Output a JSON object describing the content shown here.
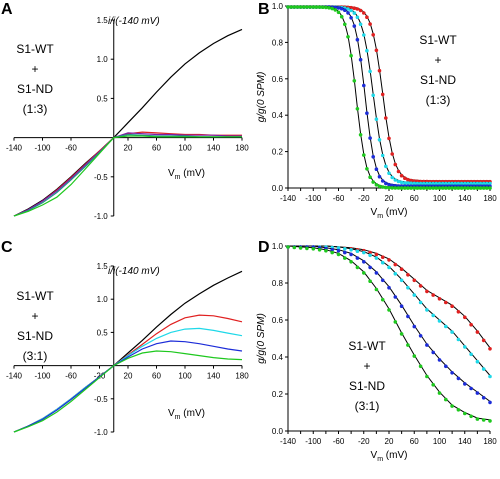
{
  "colors": {
    "black": "#000000",
    "red": "#e02020",
    "cyan": "#1ed8e8",
    "blue": "#1c2cd8",
    "green": "#1ec81e",
    "purple": "#7a20a8",
    "teal": "#20908c"
  },
  "chart_data": [
    {
      "panel": "A",
      "type": "line",
      "ylabel": "i/i(-140 mV)",
      "xlabel": "V",
      "xlabel_sub": "m",
      "xlabel_unit": " (mV)",
      "annotation": [
        "S1-WT",
        "+",
        "S1-ND",
        "(1:3)"
      ],
      "xlim": [
        -140,
        180
      ],
      "ylim": [
        -1.0,
        1.5
      ],
      "xticks": [
        -140,
        -100,
        -60,
        20,
        60,
        100,
        140,
        180
      ],
      "xtick_labels": [
        "-140",
        "-100",
        "-60",
        "20",
        "60",
        "100",
        "140",
        "180"
      ],
      "yticks": [
        -1.0,
        -0.5,
        0.5,
        1.0,
        1.5
      ],
      "ytick_labels": [
        "-1.0",
        "-0.5",
        "0.5",
        "1.0",
        "1.5"
      ],
      "series": [
        {
          "color": "black",
          "x": [
            -140,
            -120,
            -100,
            -80,
            -60,
            -40,
            -20,
            0,
            20,
            40,
            60,
            80,
            100,
            120,
            140,
            160,
            180
          ],
          "y": [
            -1.0,
            -0.91,
            -0.8,
            -0.66,
            -0.5,
            -0.33,
            -0.17,
            0,
            0.19,
            0.38,
            0.58,
            0.77,
            0.94,
            1.08,
            1.2,
            1.3,
            1.38
          ]
        },
        {
          "color": "red",
          "x": [
            -140,
            -120,
            -100,
            -80,
            -60,
            -40,
            -20,
            0,
            20,
            40,
            60,
            80,
            100,
            120,
            140,
            160,
            180
          ],
          "y": [
            -1.0,
            -0.92,
            -0.81,
            -0.67,
            -0.51,
            -0.34,
            -0.17,
            0,
            0.05,
            0.07,
            0.06,
            0.05,
            0.04,
            0.04,
            0.03,
            0.03,
            0.03
          ]
        },
        {
          "color": "purple",
          "x": [
            -140,
            -120,
            -100,
            -80,
            -60,
            -40,
            -20,
            0,
            20,
            40,
            60,
            80,
            100,
            120,
            140,
            160,
            180
          ],
          "y": [
            -1.0,
            -0.92,
            -0.81,
            -0.68,
            -0.52,
            -0.35,
            -0.18,
            0,
            0.06,
            0.05,
            0.04,
            0.04,
            0.03,
            0.03,
            0.03,
            0.02,
            0.02
          ]
        },
        {
          "color": "teal",
          "x": [
            -140,
            -120,
            -100,
            -80,
            -60,
            -40,
            -20,
            0,
            20,
            40,
            60,
            80,
            100,
            120,
            140,
            160,
            180
          ],
          "y": [
            -1.0,
            -0.93,
            -0.83,
            -0.7,
            -0.54,
            -0.37,
            -0.19,
            0,
            0.04,
            0.03,
            0.02,
            0.02,
            0.02,
            0.01,
            0.01,
            0.01,
            0.01
          ]
        },
        {
          "color": "green",
          "x": [
            -140,
            -120,
            -100,
            -80,
            -60,
            -40,
            -20,
            0,
            20,
            40,
            60,
            80,
            100,
            120,
            140,
            160,
            180
          ],
          "y": [
            -1.0,
            -0.94,
            -0.86,
            -0.76,
            -0.6,
            -0.4,
            -0.2,
            0,
            0.02,
            0.02,
            0.01,
            0.01,
            0.01,
            0.01,
            0.01,
            0.01,
            0.01
          ]
        }
      ]
    },
    {
      "panel": "B",
      "type": "line",
      "ylabel": "g/g(0 SPM)",
      "xlabel": "V",
      "xlabel_sub": "m",
      "xlabel_unit": " (mV)",
      "annotation": [
        "S1-WT",
        "+",
        "S1-ND",
        "(1:3)"
      ],
      "xlim": [
        -140,
        180
      ],
      "ylim": [
        0,
        1.0
      ],
      "xticks": [
        -140,
        -120,
        -100,
        -80,
        -60,
        -40,
        -20,
        0,
        20,
        40,
        60,
        80,
        100,
        120,
        140,
        160,
        180
      ],
      "xtick_labels": [
        "-140",
        "-100",
        "-60",
        "-20",
        "20",
        "60",
        "100",
        "140",
        "180"
      ],
      "xtick_label_values": [
        -140,
        -100,
        -60,
        -20,
        20,
        60,
        100,
        140,
        180
      ],
      "yticks": [
        0.0,
        0.2,
        0.4,
        0.6,
        0.8,
        1.0
      ],
      "ytick_labels": [
        "0.0",
        "0.2",
        "0.4",
        "0.6",
        "0.8",
        "1.0"
      ],
      "series": [
        {
          "color": "red",
          "v50": 10,
          "k": 9,
          "base": 0.04
        },
        {
          "color": "cyan",
          "v50": -5,
          "k": 9,
          "base": 0.03
        },
        {
          "color": "blue",
          "v50": -18,
          "k": 8,
          "base": 0.015
        },
        {
          "color": "green",
          "v50": -32,
          "k": 8,
          "base": 0.005
        }
      ]
    },
    {
      "panel": "C",
      "type": "line",
      "ylabel": "i/i(-140 mV)",
      "xlabel": "V",
      "xlabel_sub": "m",
      "xlabel_unit": " (mV)",
      "annotation": [
        "S1-WT",
        "+",
        "S1-ND",
        "(3:1)"
      ],
      "xlim": [
        -140,
        180
      ],
      "ylim": [
        -1.0,
        1.5
      ],
      "xticks": [
        -140,
        -100,
        -60,
        -20,
        20,
        60,
        100,
        140,
        180
      ],
      "xtick_labels": [
        "-140",
        "-100",
        "-60",
        "-20",
        "20",
        "60",
        "100",
        "140",
        "180"
      ],
      "yticks": [
        -1.0,
        -0.5,
        0.5,
        1.0,
        1.5
      ],
      "ytick_labels": [
        "-1.0",
        "-0.5",
        "0.5",
        "1.0",
        "1.5"
      ],
      "series": [
        {
          "color": "black",
          "x": [
            -140,
            -120,
            -100,
            -80,
            -60,
            -40,
            -20,
            0,
            20,
            40,
            60,
            80,
            100,
            120,
            140,
            160,
            180
          ],
          "y": [
            -1.0,
            -0.91,
            -0.8,
            -0.66,
            -0.5,
            -0.33,
            -0.17,
            0,
            0.19,
            0.38,
            0.58,
            0.77,
            0.94,
            1.08,
            1.21,
            1.32,
            1.42
          ]
        },
        {
          "color": "red",
          "x": [
            -140,
            -120,
            -100,
            -80,
            -60,
            -40,
            -20,
            0,
            20,
            40,
            60,
            80,
            100,
            120,
            140,
            160,
            180
          ],
          "y": [
            -1.0,
            -0.91,
            -0.8,
            -0.66,
            -0.5,
            -0.33,
            -0.17,
            0,
            0.16,
            0.32,
            0.48,
            0.62,
            0.72,
            0.76,
            0.75,
            0.71,
            0.66
          ]
        },
        {
          "color": "cyan",
          "x": [
            -140,
            -120,
            -100,
            -80,
            -60,
            -40,
            -20,
            0,
            20,
            40,
            60,
            80,
            100,
            120,
            140,
            160,
            180
          ],
          "y": [
            -1.0,
            -0.91,
            -0.8,
            -0.66,
            -0.5,
            -0.33,
            -0.17,
            0,
            0.15,
            0.29,
            0.41,
            0.5,
            0.55,
            0.56,
            0.53,
            0.49,
            0.45
          ]
        },
        {
          "color": "blue",
          "x": [
            -140,
            -120,
            -100,
            -80,
            -60,
            -40,
            -20,
            0,
            20,
            40,
            60,
            80,
            100,
            120,
            140,
            160,
            180
          ],
          "y": [
            -1.0,
            -0.91,
            -0.81,
            -0.67,
            -0.51,
            -0.34,
            -0.17,
            0,
            0.13,
            0.25,
            0.33,
            0.37,
            0.36,
            0.33,
            0.29,
            0.25,
            0.22
          ]
        },
        {
          "color": "green",
          "x": [
            -140,
            -120,
            -100,
            -80,
            -60,
            -40,
            -20,
            0,
            20,
            40,
            60,
            80,
            100,
            120,
            140,
            160,
            180
          ],
          "y": [
            -1.0,
            -0.92,
            -0.83,
            -0.7,
            -0.54,
            -0.36,
            -0.18,
            0,
            0.11,
            0.19,
            0.22,
            0.21,
            0.18,
            0.15,
            0.12,
            0.1,
            0.09
          ]
        }
      ]
    },
    {
      "panel": "D",
      "type": "line",
      "ylabel": "g/g(0 SPM)",
      "xlabel": "V",
      "xlabel_sub": "m",
      "xlabel_unit": " (mV)",
      "annotation": [
        "S1-WT",
        "+",
        "S1-ND",
        "(3:1)"
      ],
      "xlim": [
        -140,
        180
      ],
      "ylim": [
        0,
        1.0
      ],
      "xticks": [
        -140,
        -120,
        -100,
        -80,
        -60,
        -40,
        -20,
        0,
        20,
        40,
        60,
        80,
        100,
        120,
        140,
        160,
        180
      ],
      "xtick_labels": [
        "-140",
        "-100",
        "-60",
        "-20",
        "20",
        "60",
        "100",
        "140",
        "180"
      ],
      "xtick_label_values": [
        -140,
        -100,
        -60,
        -20,
        20,
        60,
        100,
        140,
        180
      ],
      "yticks": [
        0.0,
        0.2,
        0.4,
        0.6,
        0.8,
        1.0
      ],
      "ytick_labels": [
        "0.0",
        "0.2",
        "0.4",
        "0.6",
        "0.8",
        "1.0"
      ],
      "series": [
        {
          "color": "red",
          "x": [
            -140,
            -120,
            -100,
            -80,
            -60,
            -40,
            -20,
            0,
            20,
            40,
            60,
            80,
            100,
            120,
            140,
            160,
            180
          ],
          "y": [
            1.0,
            1.0,
            1.0,
            1.0,
            0.995,
            0.99,
            0.98,
            0.96,
            0.93,
            0.88,
            0.82,
            0.76,
            0.72,
            0.68,
            0.62,
            0.54,
            0.45
          ]
        },
        {
          "color": "cyan",
          "x": [
            -140,
            -120,
            -100,
            -80,
            -60,
            -40,
            -20,
            0,
            20,
            40,
            60,
            80,
            100,
            120,
            140,
            160,
            180
          ],
          "y": [
            1.0,
            1.0,
            1.0,
            1.0,
            0.995,
            0.985,
            0.97,
            0.94,
            0.89,
            0.82,
            0.74,
            0.66,
            0.6,
            0.54,
            0.46,
            0.38,
            0.3
          ]
        },
        {
          "color": "blue",
          "x": [
            -140,
            -120,
            -100,
            -80,
            -60,
            -40,
            -20,
            0,
            20,
            40,
            60,
            80,
            100,
            120,
            140,
            160,
            180
          ],
          "y": [
            1.0,
            1.0,
            1.0,
            0.99,
            0.98,
            0.96,
            0.92,
            0.86,
            0.78,
            0.68,
            0.57,
            0.47,
            0.39,
            0.32,
            0.26,
            0.21,
            0.16
          ]
        },
        {
          "color": "green",
          "x": [
            -140,
            -120,
            -100,
            -80,
            -60,
            -40,
            -20,
            0,
            20,
            40,
            60,
            80,
            100,
            120,
            140,
            160,
            180
          ],
          "y": [
            1.0,
            0.995,
            0.99,
            0.98,
            0.96,
            0.92,
            0.86,
            0.77,
            0.66,
            0.53,
            0.41,
            0.3,
            0.21,
            0.14,
            0.1,
            0.07,
            0.06
          ]
        }
      ]
    }
  ]
}
